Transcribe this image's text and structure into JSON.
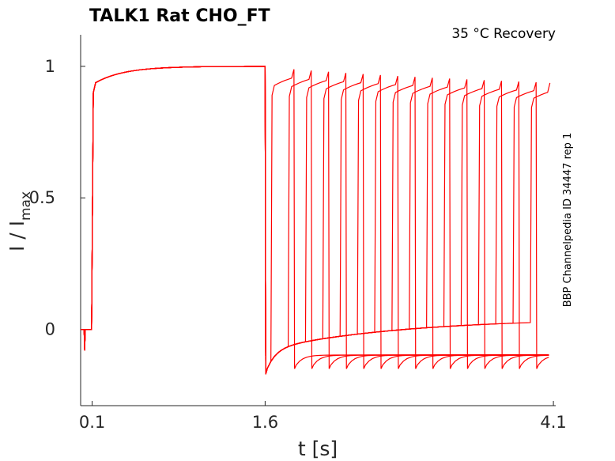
{
  "chart_data": {
    "type": "line",
    "title": "TALK1  Rat  CHO_FT",
    "subtitle": "35 °C  Recovery",
    "side_note": "BBP Channelpedia ID 34447 rep 1",
    "xlabel": "t [s]",
    "ylabel": "I / I",
    "ylabel_subscript": "max",
    "x_ticks": [
      "0.1",
      "1.6",
      "4.1"
    ],
    "x_tick_values": [
      0.1,
      1.6,
      4.1
    ],
    "y_ticks": [
      "0",
      "0.5",
      "1"
    ],
    "y_tick_values": [
      0,
      0.5,
      1
    ],
    "xlim": [
      0.0,
      4.12
    ],
    "ylim": [
      -0.29,
      1.12
    ],
    "series_color": "#ff0000",
    "protocol": {
      "baseline": 0.0,
      "spike_at_start": -0.08,
      "step_on": 0.1,
      "conditioning_end": 1.6,
      "plateau": 1.0,
      "tail_undershoot": -0.17,
      "recovery_gaps_s": [
        0.05,
        0.2,
        0.35,
        0.5,
        0.65,
        0.8,
        0.95,
        1.1,
        1.25,
        1.4,
        1.55,
        1.7,
        1.85,
        2.0,
        2.15,
        2.3
      ],
      "test_pulse_duration_s": 0.2,
      "tail_after_test_start": -0.15,
      "tail_after_test_end": -0.05
    },
    "grid": false,
    "legend": "none"
  }
}
